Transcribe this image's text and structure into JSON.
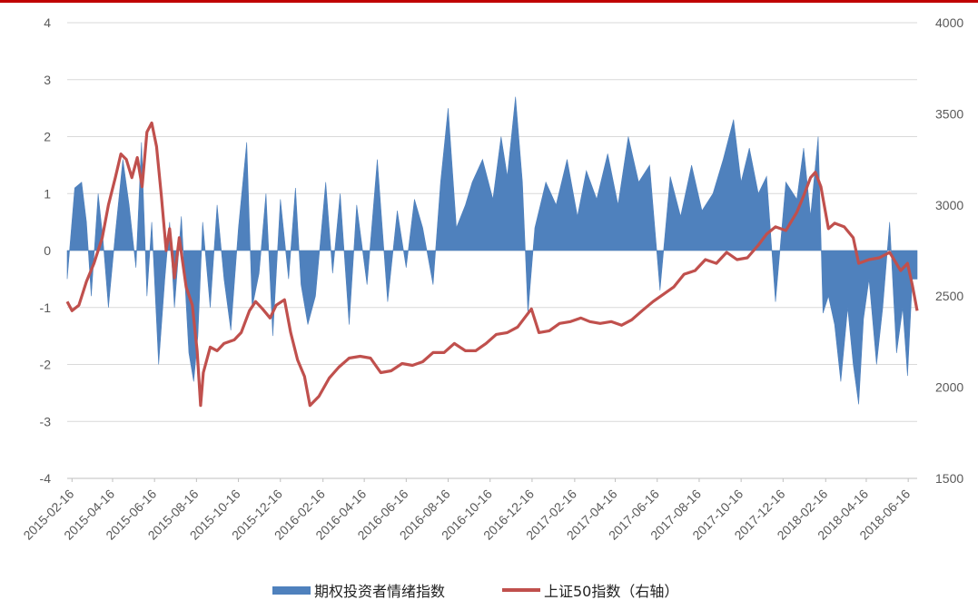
{
  "chart_data": {
    "type": "area+line",
    "title": "",
    "xlabel": "",
    "ylabel": "",
    "x_tick_labels": [
      "2015-02-16",
      "2015-04-16",
      "2015-06-16",
      "2015-08-16",
      "2015-10-16",
      "2015-12-16",
      "2016-02-16",
      "2016-04-16",
      "2016-06-16",
      "2016-08-16",
      "2016-10-16",
      "2016-12-16",
      "2017-02-16",
      "2017-04-16",
      "2017-06-16",
      "2017-08-16",
      "2017-10-16",
      "2017-12-16",
      "2018-02-16",
      "2018-04-16",
      "2018-06-16"
    ],
    "x_range": [
      "2015-02-09",
      "2018-06-29"
    ],
    "y_left": {
      "lim": [
        -4,
        4
      ],
      "ticks": [
        -4,
        -3,
        -2,
        -1,
        0,
        1,
        2,
        3,
        4
      ]
    },
    "y_right": {
      "lim": [
        1500,
        4000
      ],
      "ticks": [
        1500,
        2000,
        2500,
        3000,
        3500,
        4000
      ]
    },
    "grid": true,
    "legend_position": "bottom",
    "series": [
      {
        "name": "期权投资者情绪指数",
        "kind": "area",
        "axis": "left",
        "color": "#4f81bd",
        "dates": [
          "2015-02-09",
          "2015-02-20",
          "2015-03-02",
          "2015-03-09",
          "2015-03-16",
          "2015-03-26",
          "2015-04-02",
          "2015-04-10",
          "2015-04-20",
          "2015-05-01",
          "2015-05-10",
          "2015-05-20",
          "2015-05-28",
          "2015-06-05",
          "2015-06-12",
          "2015-06-22",
          "2015-07-01",
          "2015-07-08",
          "2015-07-15",
          "2015-07-25",
          "2015-08-05",
          "2015-08-12",
          "2015-08-18",
          "2015-08-25",
          "2015-09-05",
          "2015-09-15",
          "2015-09-25",
          "2015-10-05",
          "2015-10-16",
          "2015-10-28",
          "2015-11-05",
          "2015-11-15",
          "2015-11-25",
          "2015-12-05",
          "2015-12-16",
          "2015-12-28",
          "2016-01-07",
          "2016-01-15",
          "2016-01-25",
          "2016-02-05",
          "2016-02-20",
          "2016-03-01",
          "2016-03-12",
          "2016-03-25",
          "2016-04-05",
          "2016-04-20",
          "2016-05-05",
          "2016-05-20",
          "2016-06-03",
          "2016-06-16",
          "2016-06-28",
          "2016-07-10",
          "2016-07-25",
          "2016-08-05",
          "2016-08-16",
          "2016-08-28",
          "2016-09-10",
          "2016-09-20",
          "2016-10-05",
          "2016-10-20",
          "2016-11-01",
          "2016-11-10",
          "2016-11-22",
          "2016-12-02",
          "2016-12-10",
          "2016-12-20",
          "2017-01-05",
          "2017-01-20",
          "2017-02-05",
          "2017-02-20",
          "2017-03-05",
          "2017-03-20",
          "2017-04-05",
          "2017-04-20",
          "2017-05-05",
          "2017-05-20",
          "2017-06-05",
          "2017-06-20",
          "2017-07-05",
          "2017-07-20",
          "2017-08-05",
          "2017-08-20",
          "2017-09-05",
          "2017-09-20",
          "2017-10-05",
          "2017-10-16",
          "2017-10-28",
          "2017-11-10",
          "2017-11-22",
          "2017-12-05",
          "2017-12-20",
          "2018-01-05",
          "2018-01-15",
          "2018-01-25",
          "2018-02-05",
          "2018-02-12",
          "2018-02-20",
          "2018-03-01",
          "2018-03-10",
          "2018-03-20",
          "2018-03-28",
          "2018-04-05",
          "2018-04-12",
          "2018-04-20",
          "2018-05-01",
          "2018-05-10",
          "2018-05-20",
          "2018-05-30",
          "2018-06-08",
          "2018-06-15",
          "2018-06-22",
          "2018-06-29"
        ],
        "values": [
          -0.5,
          1.1,
          1.2,
          0.5,
          -0.8,
          1.0,
          0.2,
          -1.0,
          0.3,
          1.6,
          0.8,
          -0.3,
          1.9,
          -0.8,
          0.5,
          -2.0,
          -0.5,
          0.5,
          -1.0,
          0.6,
          -1.8,
          -2.3,
          -1.5,
          0.5,
          -1.0,
          0.8,
          -0.5,
          -1.4,
          0.4,
          1.9,
          -1.0,
          -0.4,
          1.0,
          -1.5,
          0.9,
          -0.5,
          1.1,
          -0.6,
          -1.3,
          -0.8,
          1.2,
          -0.4,
          1.0,
          -1.3,
          0.8,
          -0.6,
          1.6,
          -0.9,
          0.7,
          -0.3,
          0.9,
          0.4,
          -0.6,
          1.2,
          2.5,
          0.4,
          0.8,
          1.2,
          1.6,
          0.9,
          2.0,
          1.3,
          2.7,
          1.2,
          -1.1,
          0.4,
          1.2,
          0.8,
          1.6,
          0.6,
          1.4,
          0.9,
          1.7,
          0.8,
          2.0,
          1.2,
          1.5,
          -0.7,
          1.3,
          0.6,
          1.5,
          0.7,
          1.0,
          1.6,
          2.3,
          1.2,
          1.8,
          1.0,
          1.3,
          -0.9,
          1.2,
          0.9,
          1.8,
          0.6,
          2.0,
          -1.1,
          -0.8,
          -1.3,
          -2.3,
          -1.0,
          -2.0,
          -2.7,
          -1.2,
          -0.5,
          -2.0,
          -1.0,
          0.5,
          -1.8,
          -1.0,
          -2.2,
          -0.5,
          -0.5
        ]
      },
      {
        "name": "上证50指数（右轴）",
        "kind": "line",
        "axis": "right",
        "color": "#c0504d",
        "dates": [
          "2015-02-09",
          "2015-02-16",
          "2015-02-26",
          "2015-03-09",
          "2015-03-20",
          "2015-04-01",
          "2015-04-10",
          "2015-04-20",
          "2015-04-28",
          "2015-05-06",
          "2015-05-14",
          "2015-05-22",
          "2015-05-29",
          "2015-06-05",
          "2015-06-12",
          "2015-06-19",
          "2015-06-26",
          "2015-07-03",
          "2015-07-08",
          "2015-07-15",
          "2015-07-22",
          "2015-08-01",
          "2015-08-10",
          "2015-08-17",
          "2015-08-22",
          "2015-08-26",
          "2015-09-05",
          "2015-09-15",
          "2015-09-25",
          "2015-10-10",
          "2015-10-20",
          "2015-11-01",
          "2015-11-10",
          "2015-11-20",
          "2015-12-01",
          "2015-12-10",
          "2015-12-22",
          "2015-12-31",
          "2016-01-10",
          "2016-01-20",
          "2016-01-28",
          "2016-02-10",
          "2016-02-25",
          "2016-03-10",
          "2016-03-25",
          "2016-04-10",
          "2016-04-25",
          "2016-05-10",
          "2016-05-25",
          "2016-06-10",
          "2016-06-25",
          "2016-07-10",
          "2016-07-25",
          "2016-08-10",
          "2016-08-25",
          "2016-09-10",
          "2016-09-25",
          "2016-10-10",
          "2016-10-25",
          "2016-11-10",
          "2016-11-25",
          "2016-12-05",
          "2016-12-15",
          "2016-12-26",
          "2017-01-10",
          "2017-01-25",
          "2017-02-10",
          "2017-02-25",
          "2017-03-10",
          "2017-03-25",
          "2017-04-10",
          "2017-04-25",
          "2017-05-10",
          "2017-05-25",
          "2017-06-10",
          "2017-06-25",
          "2017-07-10",
          "2017-07-25",
          "2017-08-10",
          "2017-08-25",
          "2017-09-10",
          "2017-09-25",
          "2017-10-10",
          "2017-10-25",
          "2017-11-10",
          "2017-11-22",
          "2017-12-05",
          "2017-12-20",
          "2018-01-05",
          "2018-01-15",
          "2018-01-25",
          "2018-02-01",
          "2018-02-09",
          "2018-02-20",
          "2018-03-01",
          "2018-03-15",
          "2018-03-28",
          "2018-04-05",
          "2018-04-20",
          "2018-05-05",
          "2018-05-20",
          "2018-06-05",
          "2018-06-15",
          "2018-06-22",
          "2018-06-29"
        ],
        "values": [
          2470,
          2420,
          2450,
          2580,
          2680,
          2820,
          3000,
          3150,
          3280,
          3250,
          3150,
          3260,
          3100,
          3400,
          3450,
          3320,
          3050,
          2750,
          2870,
          2600,
          2820,
          2550,
          2450,
          2200,
          1900,
          2080,
          2220,
          2200,
          2240,
          2260,
          2300,
          2420,
          2470,
          2430,
          2380,
          2450,
          2480,
          2300,
          2150,
          2060,
          1900,
          1950,
          2050,
          2110,
          2160,
          2170,
          2160,
          2080,
          2090,
          2130,
          2120,
          2140,
          2190,
          2190,
          2240,
          2200,
          2200,
          2240,
          2290,
          2300,
          2330,
          2380,
          2430,
          2300,
          2310,
          2350,
          2360,
          2380,
          2360,
          2350,
          2360,
          2340,
          2370,
          2420,
          2470,
          2510,
          2550,
          2620,
          2640,
          2700,
          2680,
          2740,
          2700,
          2710,
          2780,
          2840,
          2880,
          2860,
          2960,
          3050,
          3150,
          3180,
          3100,
          2870,
          2900,
          2880,
          2820,
          2680,
          2700,
          2710,
          2740,
          2640,
          2680,
          2560,
          2420
        ]
      }
    ]
  }
}
